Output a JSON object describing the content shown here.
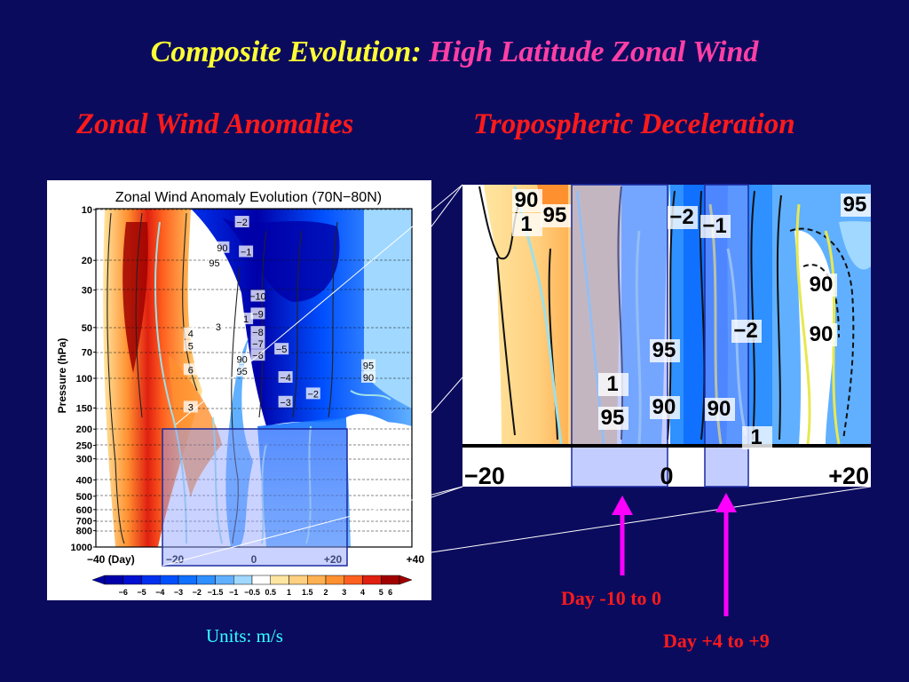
{
  "slide": {
    "title_a": "Composite Evolution:",
    "title_b": "High Latitude Zonal Wind",
    "subtitle_left": "Zonal Wind Anomalies",
    "subtitle_right": "Tropospheric Deceleration",
    "units": "Units:  m/s",
    "callout_a": "Day -10 to 0",
    "callout_b": "Day +4 to +9"
  },
  "colors": {
    "background": "#0b0b5e",
    "title_yellow": "#ffff33",
    "title_pink": "#ff3fa5",
    "subtitle_red": "#ff1a1a",
    "units_cyan": "#33ffff",
    "arrow_magenta": "#ff00ff"
  },
  "chart_data": [
    {
      "type": "heatmap",
      "title": "Zonal Wind Anomaly Evolution (70N−80N)",
      "ylabel": "Pressure (hPa)",
      "xlabel": "",
      "y_scale": "log",
      "y_reversed": true,
      "xlim": [
        -40,
        40
      ],
      "ylim": [
        1000,
        10
      ],
      "x_tick_labels": [
        "−40 (Day)",
        "−20",
        "0",
        "+20",
        "+40"
      ],
      "x_tick_values": [
        -40,
        -20,
        0,
        20,
        40
      ],
      "y_ticks": [
        10,
        20,
        30,
        50,
        70,
        100,
        150,
        200,
        250,
        300,
        400,
        500,
        600,
        700,
        800,
        1000
      ],
      "grid": "horizontal dashed at pressure ticks",
      "colorbar": {
        "labels": [
          "−6",
          "−5",
          "−4",
          "−3",
          "−2",
          "−1.5",
          "−1",
          "−0.5",
          "0.5",
          "1",
          "1.5",
          "2",
          "3",
          "4",
          "5",
          "6"
        ],
        "colors": [
          "#0000a8",
          "#0010d0",
          "#0030ee",
          "#0050ff",
          "#1070ff",
          "#2f90ff",
          "#60b0ff",
          "#a0d8ff",
          "#ffffff",
          "#ffe6a0",
          "#ffd080",
          "#ffb050",
          "#ff9030",
          "#ff6020",
          "#e02010",
          "#a00000"
        ]
      },
      "contour_labels": [
        {
          "day": -16,
          "p": 90,
          "text": "6"
        },
        {
          "day": -16,
          "p": 65,
          "text": "5"
        },
        {
          "day": -16,
          "p": 55,
          "text": "4"
        },
        {
          "day": -16,
          "p": 150,
          "text": "3"
        },
        {
          "day": -9,
          "p": 50,
          "text": "3"
        },
        {
          "day": -2,
          "p": 45,
          "text": "1"
        },
        {
          "day": -8,
          "p": 17,
          "text": "90"
        },
        {
          "day": -10,
          "p": 21,
          "text": "95"
        },
        {
          "day": -3,
          "p": 78,
          "text": "90"
        },
        {
          "day": -3,
          "p": 92,
          "text": "95"
        },
        {
          "day": -3,
          "p": 12,
          "text": "−2"
        },
        {
          "day": -2,
          "p": 18,
          "text": "−1"
        },
        {
          "day": 1,
          "p": 33,
          "text": "−10"
        },
        {
          "day": 1,
          "p": 42,
          "text": "−9"
        },
        {
          "day": 1,
          "p": 54,
          "text": "−8"
        },
        {
          "day": 1,
          "p": 63,
          "text": "−7"
        },
        {
          "day": 1,
          "p": 74,
          "text": "−6"
        },
        {
          "day": 7,
          "p": 68,
          "text": "−5"
        },
        {
          "day": 8,
          "p": 100,
          "text": "−4"
        },
        {
          "day": 8,
          "p": 140,
          "text": "−3"
        },
        {
          "day": 15,
          "p": 125,
          "text": "−2"
        },
        {
          "day": 29,
          "p": 85,
          "text": "95"
        },
        {
          "day": 29,
          "p": 100,
          "text": "90"
        }
      ]
    },
    {
      "type": "heatmap",
      "title": "",
      "x_tick_labels": [
        "−20",
        "0",
        "+20"
      ],
      "x_tick_values": [
        -20,
        0,
        20
      ],
      "highlight_windows_days": [
        [
          -10,
          0
        ],
        [
          4,
          9
        ]
      ],
      "contour_labels": [
        {
          "day": -19,
          "text": "90"
        },
        {
          "day": -19,
          "text": "1"
        },
        {
          "day": -15,
          "text": "95"
        },
        {
          "day": 1,
          "text": "−2"
        },
        {
          "day": 3,
          "text": "−1"
        },
        {
          "day": 19,
          "text": "95"
        },
        {
          "day": 15,
          "text": "90"
        },
        {
          "day": 15,
          "text": "90"
        },
        {
          "day": 8,
          "text": "−2"
        },
        {
          "day": -1,
          "text": "95"
        },
        {
          "day": -5,
          "text": "1"
        },
        {
          "day": -5,
          "text": "95"
        },
        {
          "day": -1,
          "text": "90"
        },
        {
          "day": 5,
          "text": "90"
        },
        {
          "day": 9,
          "text": "1"
        }
      ]
    }
  ]
}
